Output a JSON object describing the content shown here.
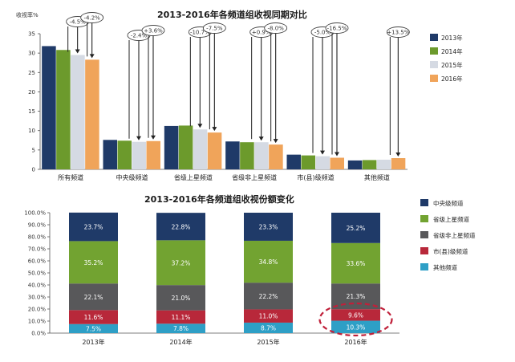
{
  "chart_data": [
    {
      "type": "bar",
      "title": "2013-2016年各频道组收视同期对比",
      "ylabel": "收视率%",
      "ylim": [
        0,
        35
      ],
      "yticks": [
        0,
        5,
        10,
        15,
        20,
        25,
        30,
        35
      ],
      "grid": false,
      "legend_position": "right",
      "categories": [
        "所有频道",
        "中央级频道",
        "省级上星频道",
        "省级非上星频道",
        "市(县)级频道",
        "其他频道"
      ],
      "series": [
        {
          "name": "2013年",
          "color": "#1f3a68",
          "values": [
            31.8,
            7.6,
            11.2,
            7.2,
            3.8,
            2.3
          ]
        },
        {
          "name": "2014年",
          "color": "#6c9a2c",
          "values": [
            30.8,
            7.4,
            11.3,
            7.0,
            3.6,
            2.4
          ]
        },
        {
          "name": "2015年",
          "color": "#d5dae3",
          "values": [
            29.5,
            7.1,
            10.3,
            7.0,
            3.4,
            2.5
          ]
        },
        {
          "name": "2016年",
          "color": "#f0a45a",
          "values": [
            28.3,
            7.3,
            9.5,
            6.4,
            3.0,
            2.9
          ]
        }
      ],
      "annotations": [
        {
          "category": "所有频道",
          "labels": [
            "-4.5%",
            "-4.2%"
          ]
        },
        {
          "category": "中央级频道",
          "labels": [
            "-2.4%",
            "+3.6%"
          ]
        },
        {
          "category": "省级上星频道",
          "labels": [
            "-10.7%",
            "-7.5%"
          ]
        },
        {
          "category": "省级非上星频道",
          "labels": [
            "+0.9%",
            "-8.0%"
          ]
        },
        {
          "category": "市(县)级频道",
          "labels": [
            "-5.0%",
            "-16.5%"
          ]
        },
        {
          "category": "其他频道",
          "labels": [
            "+13.5%"
          ]
        }
      ]
    },
    {
      "type": "bar",
      "stacked": true,
      "title": "2013-2016年各频道组收视份额变化",
      "ylim": [
        0,
        100
      ],
      "yticks": [
        "0.0%",
        "10.0%",
        "20.0%",
        "30.0%",
        "40.0%",
        "50.0%",
        "60.0%",
        "70.0%",
        "80.0%",
        "90.0%",
        "100.0%"
      ],
      "grid": false,
      "legend_position": "right",
      "categories": [
        "2013年",
        "2014年",
        "2015年",
        "2016年"
      ],
      "series": [
        {
          "name": "其他频道",
          "color": "#2e9fc6",
          "text_color": "#ffffff",
          "values": [
            7.5,
            7.8,
            8.7,
            10.3
          ],
          "labels": [
            "7.5%",
            "7.8%",
            "8.7%",
            "10.3%"
          ]
        },
        {
          "name": "市(县)级频道",
          "color": "#b8283a",
          "text_color": "#ffffff",
          "values": [
            11.6,
            11.1,
            11.0,
            9.6
          ],
          "labels": [
            "11.6%",
            "11.1%",
            "11.0%",
            "9.6%"
          ]
        },
        {
          "name": "省级非上星频道",
          "color": "#58585a",
          "text_color": "#ffffff",
          "values": [
            22.1,
            21.0,
            22.2,
            21.3
          ],
          "labels": [
            "22.1%",
            "21.0%",
            "22.2%",
            "21.3%"
          ]
        },
        {
          "name": "省级上星频道",
          "color": "#72a331",
          "text_color": "#ffffff",
          "values": [
            35.2,
            37.2,
            34.8,
            33.6
          ],
          "labels": [
            "35.2%",
            "37.2%",
            "34.8%",
            "33.6%"
          ]
        },
        {
          "name": "中央级频道",
          "color": "#1f3a68",
          "text_color": "#ffffff",
          "values": [
            23.7,
            22.8,
            23.3,
            25.2
          ],
          "labels": [
            "23.7%",
            "22.8%",
            "23.3%",
            "25.2%"
          ]
        }
      ],
      "highlight": {
        "category": "2016年",
        "style": "dashed-ellipse",
        "color": "#c0203a"
      }
    }
  ]
}
